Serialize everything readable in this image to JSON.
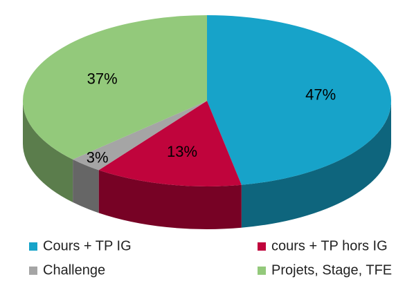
{
  "chart_data": {
    "type": "pie",
    "categories": [
      "Cours + TP IG",
      "cours + TP hors IG",
      "Challenge",
      "Projets, Stage, TFE"
    ],
    "values": [
      47,
      13,
      3,
      37
    ],
    "value_labels": [
      "47%",
      "13%",
      "3%",
      "37%"
    ],
    "colors": [
      "#17a3c9",
      "#c0043c",
      "#a5a5a5",
      "#93c97b"
    ],
    "legend": "bottom"
  }
}
